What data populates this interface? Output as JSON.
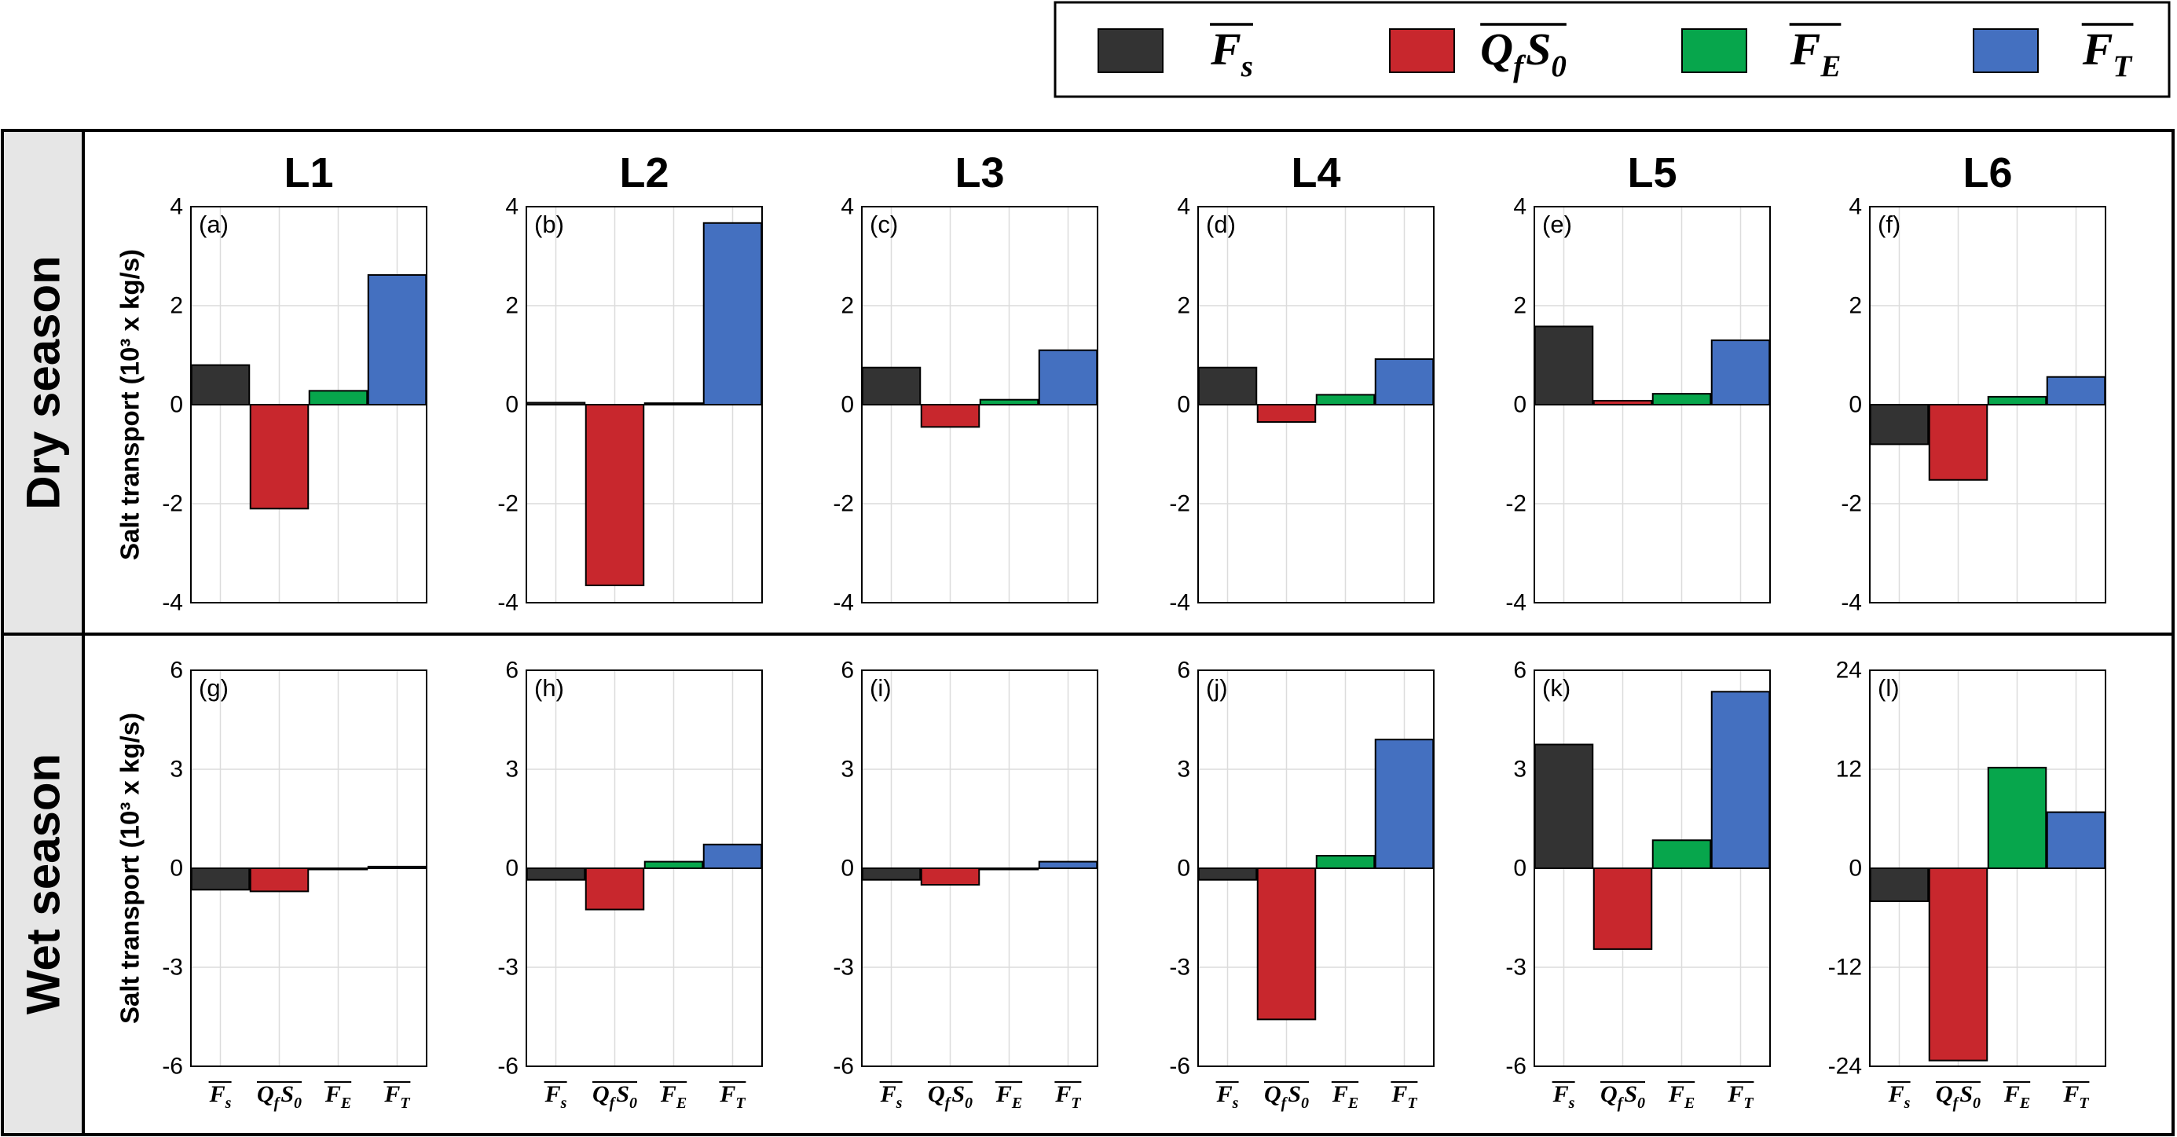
{
  "legend": {
    "entries": [
      {
        "name": "Fs",
        "base": "F",
        "sub": "s",
        "color": "#333333"
      },
      {
        "name": "QfS0",
        "base": "Q",
        "sub": "f",
        "base2": "S",
        "sub2": "0",
        "color": "#c8272d"
      },
      {
        "name": "FE",
        "base": "F",
        "sub": "E",
        "color": "#07a64c"
      },
      {
        "name": "FT",
        "base": "F",
        "sub": "T",
        "color": "#4470c0"
      }
    ]
  },
  "rows": [
    {
      "label": "Dry season"
    },
    {
      "label": "Wet season"
    }
  ],
  "ylabel": "Salt transport (10³ x kg/s)",
  "xtick_labels": [
    {
      "base": "F",
      "sub": "s"
    },
    {
      "base": "Q",
      "sub": "f",
      "base2": "S",
      "sub2": "0"
    },
    {
      "base": "F",
      "sub": "E"
    },
    {
      "base": "F",
      "sub": "T"
    }
  ],
  "chart_data": [
    {
      "type": "bar",
      "title": "L1",
      "panel": "(a)",
      "season": "Dry season",
      "ylim": [
        -4,
        4
      ],
      "yticks": [
        -4,
        -2,
        0,
        2,
        4
      ],
      "categories": [
        "Fs",
        "QfS0",
        "FE",
        "FT"
      ],
      "values": [
        0.8,
        -2.1,
        0.28,
        2.62
      ]
    },
    {
      "type": "bar",
      "title": "L2",
      "panel": "(b)",
      "season": "Dry season",
      "ylim": [
        -4,
        4
      ],
      "yticks": [
        -4,
        -2,
        0,
        2,
        4
      ],
      "categories": [
        "Fs",
        "QfS0",
        "FE",
        "FT"
      ],
      "values": [
        0.04,
        -3.65,
        0.03,
        3.67
      ]
    },
    {
      "type": "bar",
      "title": "L3",
      "panel": "(c)",
      "season": "Dry season",
      "ylim": [
        -4,
        4
      ],
      "yticks": [
        -4,
        -2,
        0,
        2,
        4
      ],
      "categories": [
        "Fs",
        "QfS0",
        "FE",
        "FT"
      ],
      "values": [
        0.75,
        -0.45,
        0.1,
        1.1
      ]
    },
    {
      "type": "bar",
      "title": "L4",
      "panel": "(d)",
      "season": "Dry season",
      "ylim": [
        -4,
        4
      ],
      "yticks": [
        -4,
        -2,
        0,
        2,
        4
      ],
      "categories": [
        "Fs",
        "QfS0",
        "FE",
        "FT"
      ],
      "values": [
        0.75,
        -0.35,
        0.2,
        0.92
      ]
    },
    {
      "type": "bar",
      "title": "L5",
      "panel": "(e)",
      "season": "Dry season",
      "ylim": [
        -4,
        4
      ],
      "yticks": [
        -4,
        -2,
        0,
        2,
        4
      ],
      "categories": [
        "Fs",
        "QfS0",
        "FE",
        "FT"
      ],
      "values": [
        1.58,
        0.08,
        0.22,
        1.3
      ]
    },
    {
      "type": "bar",
      "title": "L6",
      "panel": "(f)",
      "season": "Dry season",
      "ylim": [
        -4,
        4
      ],
      "yticks": [
        -4,
        -2,
        0,
        2,
        4
      ],
      "categories": [
        "Fs",
        "QfS0",
        "FE",
        "FT"
      ],
      "values": [
        -0.8,
        -1.52,
        0.16,
        0.56
      ]
    },
    {
      "type": "bar",
      "title": "",
      "panel": "(g)",
      "season": "Wet season",
      "ylim": [
        -6,
        6
      ],
      "yticks": [
        -6,
        -3,
        0,
        3,
        6
      ],
      "categories": [
        "Fs",
        "QfS0",
        "FE",
        "FT"
      ],
      "values": [
        -0.65,
        -0.7,
        -0.02,
        0.05
      ]
    },
    {
      "type": "bar",
      "title": "",
      "panel": "(h)",
      "season": "Wet season",
      "ylim": [
        -6,
        6
      ],
      "yticks": [
        -6,
        -3,
        0,
        3,
        6
      ],
      "categories": [
        "Fs",
        "QfS0",
        "FE",
        "FT"
      ],
      "values": [
        -0.35,
        -1.25,
        0.2,
        0.72
      ]
    },
    {
      "type": "bar",
      "title": "",
      "panel": "(i)",
      "season": "Wet season",
      "ylim": [
        -6,
        6
      ],
      "yticks": [
        -6,
        -3,
        0,
        3,
        6
      ],
      "categories": [
        "Fs",
        "QfS0",
        "FE",
        "FT"
      ],
      "values": [
        -0.35,
        -0.5,
        -0.02,
        0.2
      ]
    },
    {
      "type": "bar",
      "title": "",
      "panel": "(j)",
      "season": "Wet season",
      "ylim": [
        -6,
        6
      ],
      "yticks": [
        -6,
        -3,
        0,
        3,
        6
      ],
      "categories": [
        "Fs",
        "QfS0",
        "FE",
        "FT"
      ],
      "values": [
        -0.35,
        -4.58,
        0.38,
        3.9
      ]
    },
    {
      "type": "bar",
      "title": "",
      "panel": "(k)",
      "season": "Wet season",
      "ylim": [
        -6,
        6
      ],
      "yticks": [
        -6,
        -3,
        0,
        3,
        6
      ],
      "categories": [
        "Fs",
        "QfS0",
        "FE",
        "FT"
      ],
      "values": [
        3.75,
        -2.45,
        0.85,
        5.35
      ]
    },
    {
      "type": "bar",
      "title": "",
      "panel": "(l)",
      "season": "Wet season",
      "ylim": [
        -24,
        24
      ],
      "yticks": [
        -24,
        -12,
        0,
        12,
        24
      ],
      "categories": [
        "Fs",
        "QfS0",
        "FE",
        "FT"
      ],
      "values": [
        -4.0,
        -23.3,
        12.2,
        6.8
      ]
    }
  ]
}
